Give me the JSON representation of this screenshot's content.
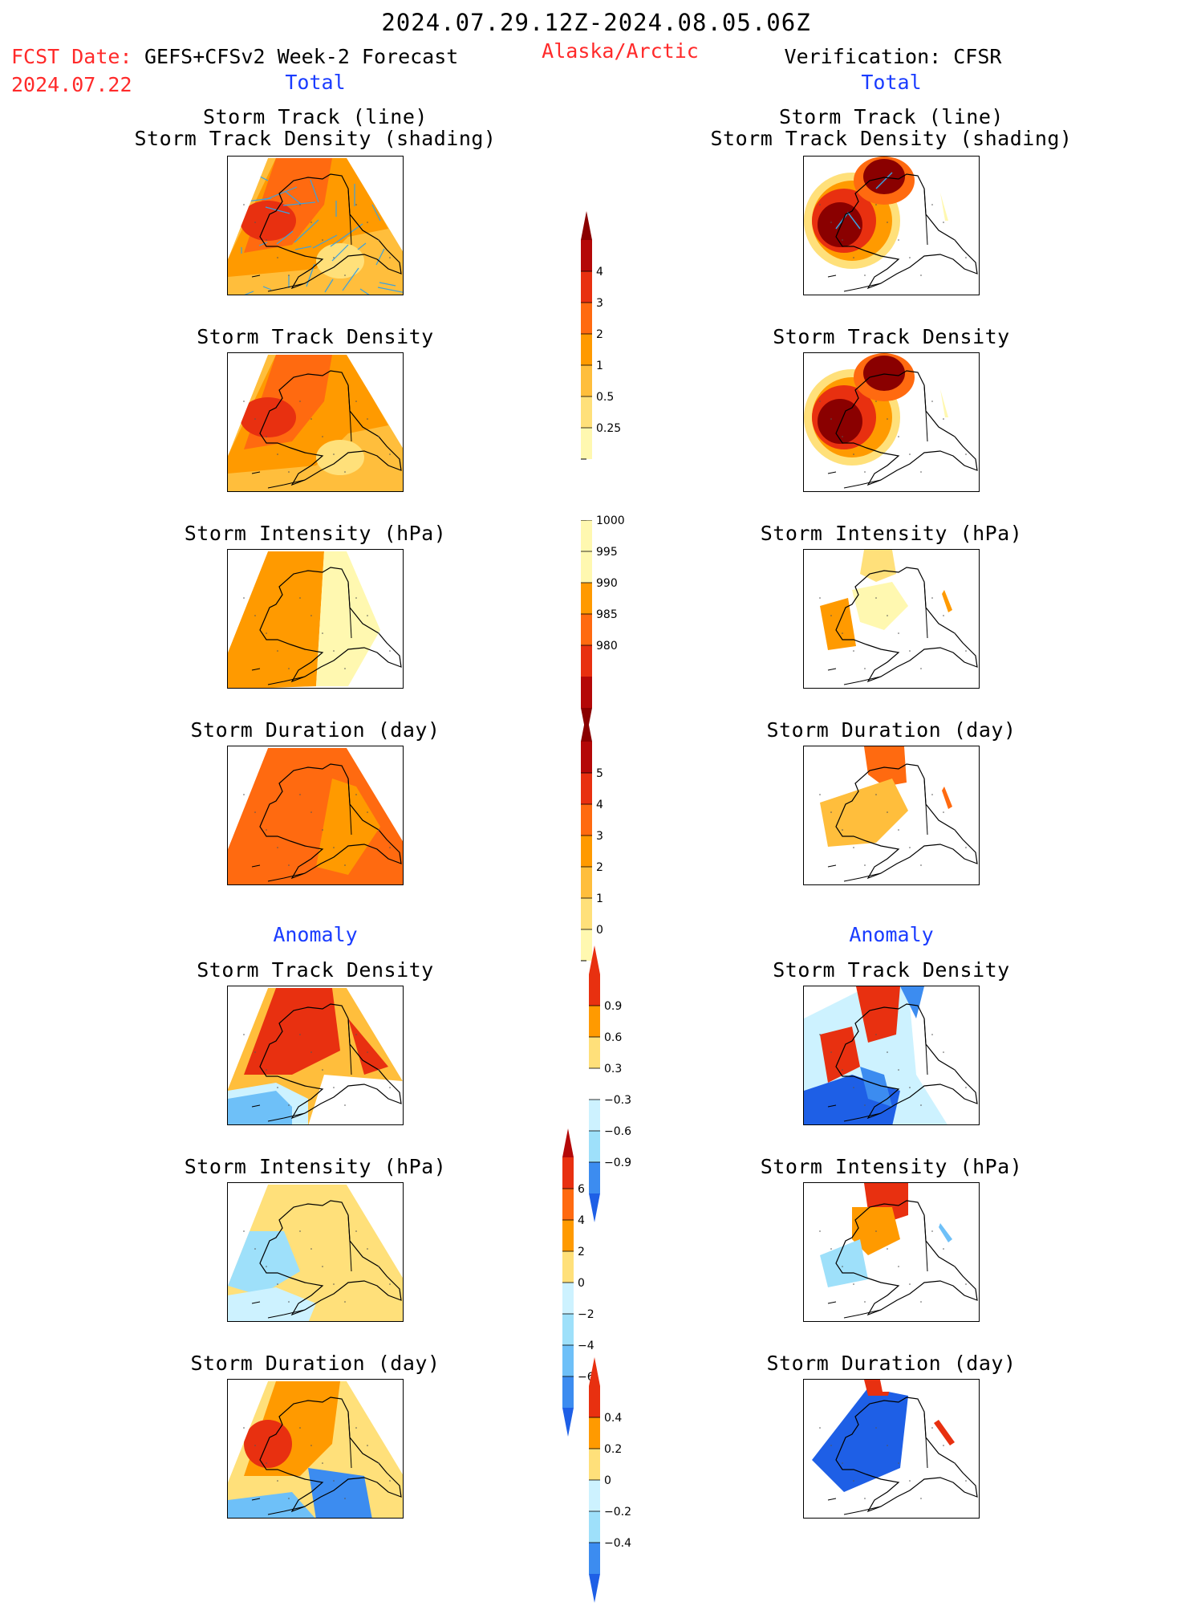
{
  "header": {
    "date_range": "2024.07.29.12Z-2024.08.05.06Z",
    "fcst_date_label": "FCST Date:",
    "fcst_title": "GEFS+CFSv2 Week-2 Forecast",
    "fcst_date": "2024.07.22",
    "region": "Alaska/Arctic",
    "verification": "Verification: CFSR"
  },
  "columns": {
    "total_label": "Total",
    "anomaly_label": "Anomaly"
  },
  "panels": {
    "track_line_1": "Storm Track (line)",
    "track_line_2": "Storm Track Density (shading)",
    "track_density": "Storm Track Density",
    "intensity": "Storm Intensity (hPa)",
    "duration": "Storm Duration (day)"
  },
  "colorbars": {
    "density": {
      "labels": [
        "4",
        "3",
        "2",
        "1",
        "0.5",
        "0.25"
      ]
    },
    "intensity": {
      "labels": [
        "1000",
        "995",
        "990",
        "985",
        "980"
      ]
    },
    "duration": {
      "labels": [
        "5",
        "4",
        "3",
        "2",
        "1",
        "0"
      ]
    },
    "density_anom": {
      "labels": [
        "0.9",
        "0.6",
        "0.3",
        "−0.3",
        "−0.6",
        "−0.9"
      ]
    },
    "intensity_anom": {
      "labels": [
        "6",
        "4",
        "2",
        "0",
        "−2",
        "−4",
        "−6"
      ]
    },
    "duration_anom": {
      "labels": [
        "0.4",
        "0.2",
        "0",
        "−0.2",
        "−0.4"
      ]
    }
  },
  "colors": {
    "header_red": "#ff2a2a",
    "header_blue": "#1a3cff",
    "warm": [
      "#fff8b0",
      "#ffe07a",
      "#ffbe3c",
      "#ff9a00",
      "#ff6a10",
      "#e83010",
      "#b40808",
      "#8a0000"
    ],
    "cool": [
      "#cdf2ff",
      "#9ee0fa",
      "#6ec0f8",
      "#3c8cf0",
      "#1e5fe6"
    ],
    "track_line": "#3aa0e0"
  }
}
